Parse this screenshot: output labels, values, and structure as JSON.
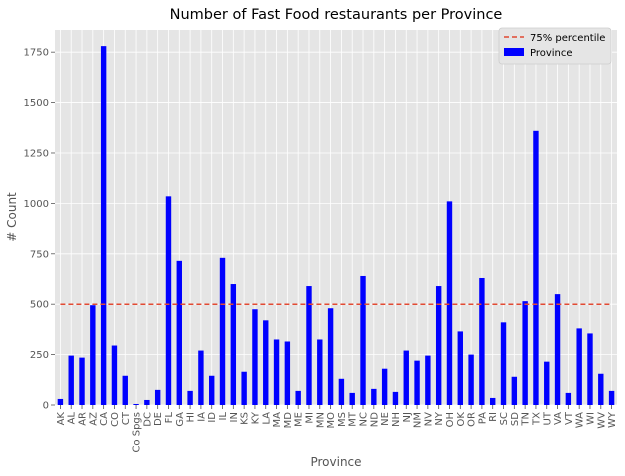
{
  "chart_data": {
    "type": "bar",
    "title": "Number of Fast Food restaurants per Province",
    "xlabel": "Province",
    "ylabel": "# Count",
    "ylim": [
      0,
      1860
    ],
    "yticks": [
      0,
      250,
      500,
      750,
      1000,
      1250,
      1500,
      1750
    ],
    "grid": true,
    "legend_position": "top-right",
    "categories": [
      "AK",
      "AL",
      "AR",
      "AZ",
      "CA",
      "CO",
      "CT",
      "Co Spgs",
      "DC",
      "DE",
      "FL",
      "GA",
      "HI",
      "IA",
      "ID",
      "IL",
      "IN",
      "KS",
      "KY",
      "LA",
      "MA",
      "MD",
      "ME",
      "MI",
      "MN",
      "MO",
      "MS",
      "MT",
      "NC",
      "ND",
      "NE",
      "NH",
      "NJ",
      "NM",
      "NV",
      "NY",
      "OH",
      "OK",
      "OR",
      "PA",
      "RI",
      "SC",
      "SD",
      "TN",
      "TX",
      "UT",
      "VA",
      "VT",
      "WA",
      "WI",
      "WV",
      "WY"
    ],
    "series": [
      {
        "name": "Province",
        "color": "#0000ff",
        "values": [
          30,
          245,
          235,
          495,
          1780,
          295,
          145,
          5,
          25,
          75,
          1035,
          715,
          70,
          270,
          145,
          730,
          600,
          165,
          475,
          420,
          325,
          315,
          70,
          590,
          325,
          480,
          130,
          60,
          640,
          80,
          180,
          65,
          270,
          220,
          245,
          590,
          1010,
          365,
          250,
          630,
          35,
          410,
          140,
          515,
          1360,
          215,
          550,
          60,
          380,
          355,
          155,
          70
        ]
      },
      {
        "name": "75% percentile",
        "color": "#e24a33",
        "style": "dashed",
        "value": 500
      }
    ]
  }
}
